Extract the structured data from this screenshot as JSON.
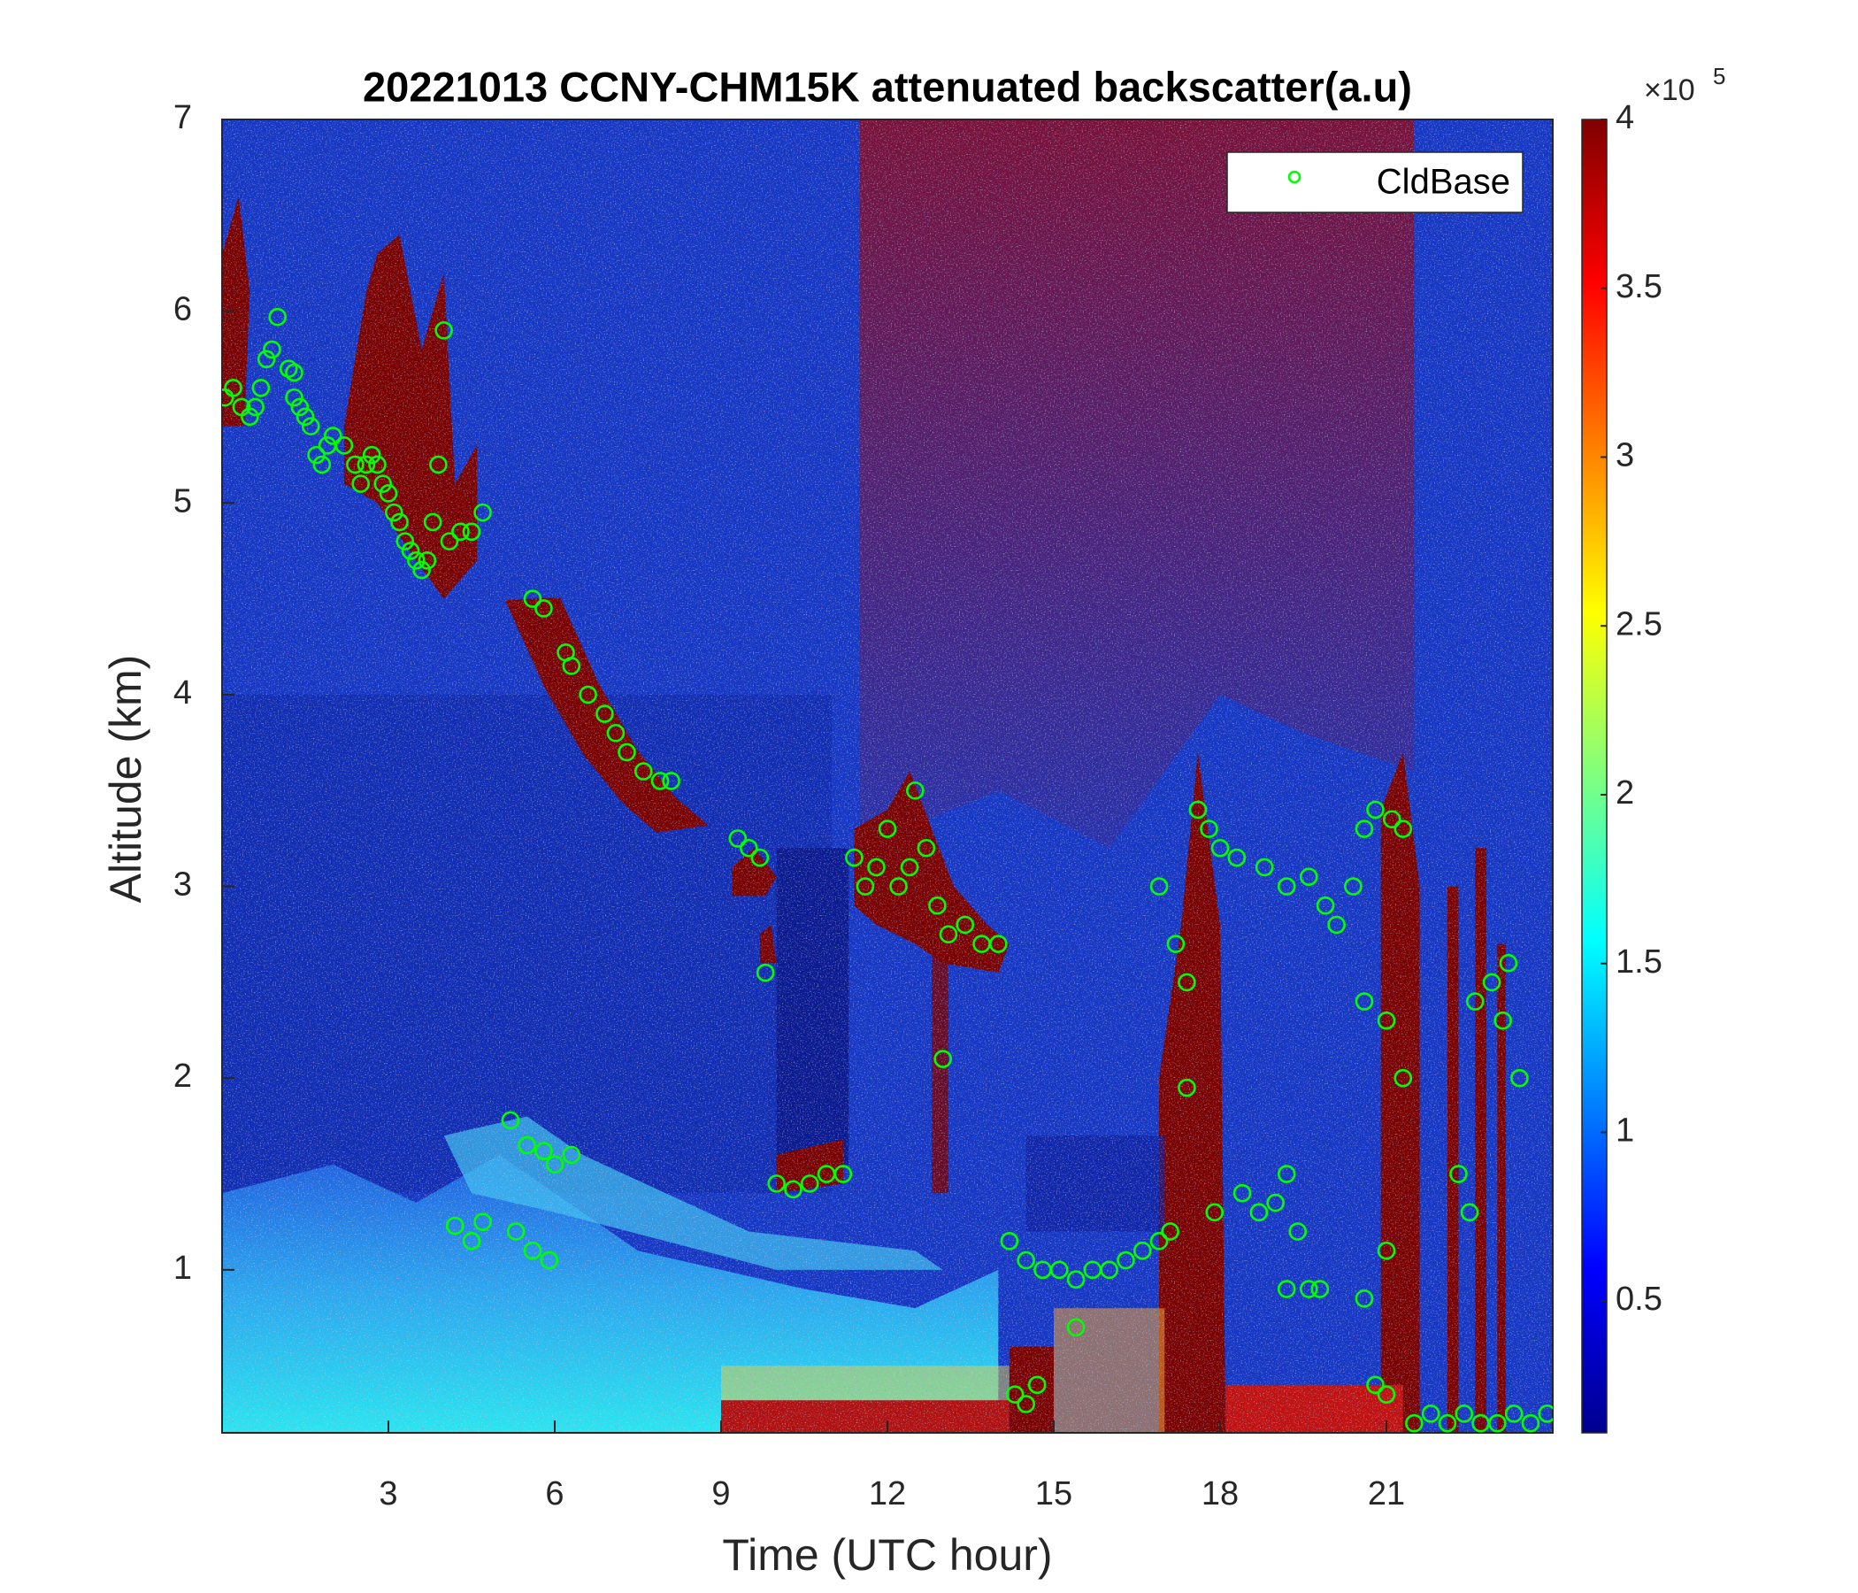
{
  "chart_data": {
    "type": "scatter",
    "title": "20221013 CCNY-CHM15K attenuated backscatter(a.u)",
    "xlabel": "Time (UTC hour)",
    "ylabel": "Altitude (km)",
    "xlim": [
      0,
      24
    ],
    "ylim": [
      0.15,
      7
    ],
    "xticks": [
      3,
      6,
      9,
      12,
      15,
      18,
      21
    ],
    "yticks": [
      1,
      2,
      3,
      4,
      5,
      6,
      7
    ],
    "legend": "top-right",
    "series": [
      {
        "name": "CldBase",
        "color": "#00ff00",
        "x": [
          0.05,
          0.2,
          0.35,
          0.5,
          0.6,
          0.7,
          0.8,
          0.9,
          1.0,
          1.2,
          1.3,
          1.3,
          1.4,
          1.5,
          1.6,
          1.7,
          1.8,
          1.9,
          2.0,
          2.2,
          2.4,
          2.5,
          2.6,
          2.7,
          2.8,
          2.9,
          3.0,
          3.1,
          3.2,
          3.3,
          3.4,
          3.5,
          3.6,
          3.7,
          3.8,
          3.9,
          4.0,
          4.1,
          4.3,
          4.5,
          4.7,
          5.6,
          5.8,
          6.2,
          6.3,
          6.6,
          6.9,
          7.1,
          7.3,
          7.6,
          7.9,
          8.1,
          9.3,
          9.5,
          9.7,
          9.8,
          10.0,
          10.3,
          10.6,
          10.9,
          11.2,
          11.4,
          11.6,
          11.8,
          12.0,
          12.2,
          12.4,
          12.5,
          12.7,
          12.9,
          13.1,
          13.4,
          13.7,
          14.0,
          13.0,
          4.2,
          4.5,
          4.7,
          5.2,
          5.3,
          5.5,
          5.8,
          6.0,
          6.3,
          5.6,
          5.9,
          14.2,
          14.5,
          14.8,
          15.1,
          15.4,
          15.7,
          16.0,
          16.3,
          16.6,
          16.9,
          14.3,
          14.5,
          14.7,
          15.4,
          16.9,
          17.2,
          17.4,
          17.6,
          17.8,
          18.0,
          18.3,
          17.4,
          17.9,
          18.4,
          17.1,
          18.7,
          19.0,
          19.2,
          19.4,
          19.2,
          19.6,
          19.8,
          18.8,
          19.2,
          19.6,
          19.9,
          20.1,
          20.4,
          20.6,
          20.8,
          21.1,
          21.3,
          20.6,
          21.0,
          21.3,
          20.6,
          20.8,
          21.0,
          21.0,
          21.5,
          21.8,
          22.1,
          22.4,
          22.7,
          23.0,
          23.3,
          23.6,
          23.9,
          22.3,
          22.6,
          22.9,
          23.1,
          22.5,
          23.2,
          23.4
        ],
        "y": [
          5.55,
          5.6,
          5.5,
          5.45,
          5.5,
          5.6,
          5.75,
          5.8,
          5.97,
          5.7,
          5.68,
          5.55,
          5.5,
          5.45,
          5.4,
          5.25,
          5.2,
          5.3,
          5.35,
          5.3,
          5.2,
          5.1,
          5.2,
          5.25,
          5.2,
          5.1,
          5.05,
          4.95,
          4.9,
          4.8,
          4.75,
          4.7,
          4.65,
          4.7,
          4.9,
          5.2,
          5.9,
          4.8,
          4.85,
          4.85,
          4.95,
          4.5,
          4.45,
          4.22,
          4.15,
          4.0,
          3.9,
          3.8,
          3.7,
          3.6,
          3.55,
          3.55,
          3.25,
          3.2,
          3.15,
          2.55,
          1.45,
          1.42,
          1.45,
          1.5,
          1.5,
          3.15,
          3.0,
          3.1,
          3.3,
          3.0,
          3.1,
          3.5,
          3.2,
          2.9,
          2.75,
          2.8,
          2.7,
          2.7,
          2.1,
          1.23,
          1.15,
          1.25,
          1.78,
          1.2,
          1.65,
          1.62,
          1.55,
          1.6,
          1.1,
          1.05,
          1.15,
          1.05,
          1.0,
          1.0,
          0.95,
          1.0,
          1.0,
          1.05,
          1.1,
          1.15,
          0.35,
          0.3,
          0.4,
          0.7,
          3.0,
          2.7,
          2.5,
          3.4,
          3.3,
          3.2,
          3.15,
          1.95,
          1.3,
          1.4,
          1.2,
          1.3,
          1.35,
          1.5,
          1.2,
          0.9,
          0.9,
          0.9,
          3.1,
          3.0,
          3.05,
          2.9,
          2.8,
          3.0,
          3.3,
          3.4,
          3.35,
          3.3,
          2.4,
          2.3,
          2.0,
          0.85,
          0.4,
          0.35,
          1.1,
          0.2,
          0.25,
          0.2,
          0.25,
          0.2,
          0.2,
          0.25,
          0.2,
          0.25,
          1.5,
          2.4,
          2.5,
          2.3,
          1.3,
          2.6,
          2.0
        ]
      }
    ],
    "colorbar": {
      "colormap": "jet",
      "clim": [
        0.11,
        4
      ],
      "ticks": [
        0.5,
        1,
        1.5,
        2,
        2.5,
        3,
        3.5,
        4
      ],
      "multiplier": "×10",
      "exponent": "5"
    }
  }
}
